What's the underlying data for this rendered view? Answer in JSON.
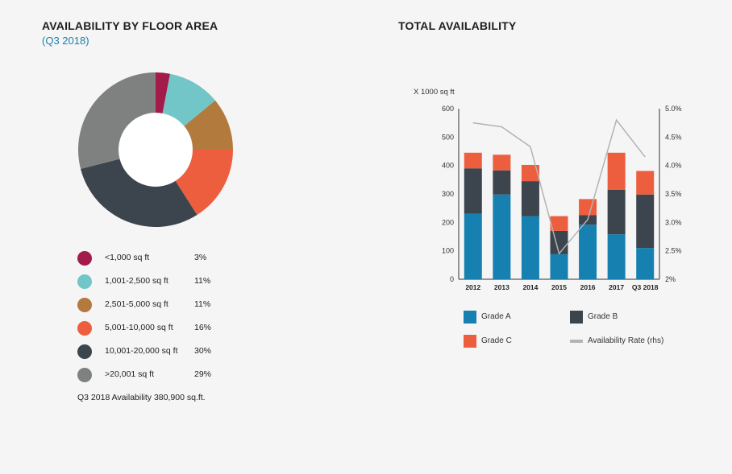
{
  "colors": {
    "background": "#f5f5f5",
    "accent": "#1b7fa8",
    "grade_a": "#1681b0",
    "grade_b": "#3c444d",
    "grade_c": "#ed5e3f",
    "rate_line": "#b3b3b3"
  },
  "left": {
    "title": "AVAILABILITY BY FLOOR AREA",
    "subtitle": "(Q3 2018)",
    "note": "Q3 2018 Availability 380,900 sq.ft."
  },
  "right": {
    "title": "TOTAL AVAILABILITY"
  },
  "chart_data": [
    {
      "type": "pie",
      "variant": "donut",
      "title": "AVAILABILITY BY FLOOR AREA",
      "subtitle": "(Q3 2018)",
      "slices": [
        {
          "label": "<1,000 sq ft",
          "pct_label": "3%",
          "value": 3,
          "color": "#a31b4b"
        },
        {
          "label": "1,001-2,500 sq ft",
          "pct_label": "11%",
          "value": 11,
          "color": "#72c6c8"
        },
        {
          "label": "2,501-5,000 sq ft",
          "pct_label": "11%",
          "value": 11,
          "color": "#b27a3c"
        },
        {
          "label": "5,001-10,000 sq ft",
          "pct_label": "16%",
          "value": 16,
          "color": "#ed5e3f"
        },
        {
          "label": "10,001-20,000 sq ft",
          "pct_label": "30%",
          "value": 30,
          "color": "#3c444d"
        },
        {
          "label": ">20,001 sq ft",
          "pct_label": "29%",
          "value": 29,
          "color": "#7f8080"
        }
      ]
    },
    {
      "type": "bar",
      "stacked": true,
      "title": "TOTAL AVAILABILITY",
      "ylabel": "X 1000 sq ft",
      "categories": [
        "2012",
        "2013",
        "2014",
        "2015",
        "2016",
        "2017",
        "Q3 2018"
      ],
      "ylim": [
        0,
        600
      ],
      "yticks": [
        "0",
        "100",
        "200",
        "300",
        "400",
        "500",
        "600"
      ],
      "series": [
        {
          "name": "Grade A",
          "color": "#1681b0",
          "values": [
            230,
            298,
            222,
            88,
            192,
            158,
            110
          ]
        },
        {
          "name": "Grade B",
          "color": "#3c444d",
          "values": [
            160,
            85,
            123,
            82,
            33,
            157,
            188
          ]
        },
        {
          "name": "Grade C",
          "color": "#ed5e3f",
          "values": [
            55,
            55,
            57,
            52,
            57,
            130,
            83
          ]
        }
      ],
      "line_series": {
        "name": "Availability Rate (rhs)",
        "color": "#b3b3b3",
        "axis": "right",
        "ylim": [
          2.0,
          5.0
        ],
        "yticks": [
          "2%",
          "2.5%",
          "3.0%",
          "3.5%",
          "4.0%",
          "4.5%",
          "5.0%"
        ],
        "values": [
          4.75,
          4.68,
          4.33,
          2.45,
          3.05,
          4.8,
          4.15
        ]
      },
      "legend": [
        {
          "name": "Grade A",
          "kind": "box",
          "color": "#1681b0"
        },
        {
          "name": "Grade B",
          "kind": "box",
          "color": "#3c444d"
        },
        {
          "name": "Grade C",
          "kind": "box",
          "color": "#ed5e3f"
        },
        {
          "name": "Availability Rate (rhs)",
          "kind": "line",
          "color": "#b3b3b3"
        }
      ],
      "legend_position": "bottom"
    }
  ]
}
